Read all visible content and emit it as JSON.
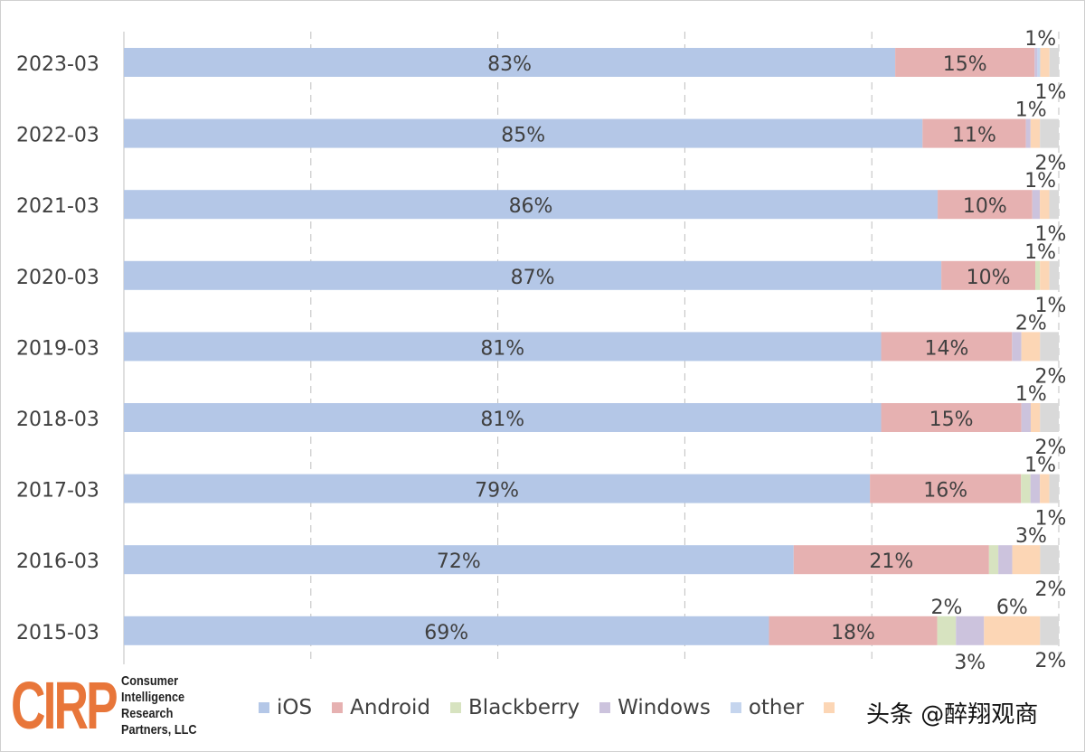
{
  "chart_data": {
    "type": "bar",
    "orientation": "horizontal",
    "stacked": true,
    "percent_stacked": true,
    "categories": [
      "2023-03",
      "2022-03",
      "2021-03",
      "2020-03",
      "2019-03",
      "2018-03",
      "2017-03",
      "2016-03",
      "2015-03"
    ],
    "xlim": [
      0,
      100
    ],
    "grid": "vertical-dashed",
    "legend_position": "bottom",
    "series": [
      {
        "name": "iOS",
        "color": "#b4c7e7",
        "values": [
          83,
          85,
          86,
          87,
          81,
          81,
          79,
          72,
          69
        ],
        "labels": [
          "83%",
          "85%",
          "86%",
          "87%",
          "81%",
          "81%",
          "79%",
          "72%",
          "69%"
        ]
      },
      {
        "name": "Android",
        "color": "#e6b1b1",
        "values": [
          15,
          11,
          10,
          10,
          14,
          15,
          16,
          21,
          18
        ],
        "labels": [
          "15%",
          "11%",
          "10%",
          "10%",
          "14%",
          "15%",
          "16%",
          "21%",
          "18%"
        ]
      },
      {
        "name": "Blackberry",
        "color": "#d7e3c0",
        "values": [
          0,
          0,
          0,
          0.5,
          0,
          0,
          1,
          1,
          2
        ],
        "labels": [
          "",
          "",
          "",
          "",
          "",
          "",
          "",
          "",
          "2%"
        ]
      },
      {
        "name": "Windows",
        "color": "#ccc3dd",
        "values": [
          0.3,
          0.5,
          0.8,
          0,
          1,
          1,
          1,
          1.5,
          3
        ],
        "labels": [
          "",
          "",
          "",
          "",
          "",
          "",
          "",
          "",
          "3%"
        ]
      },
      {
        "name": "other",
        "color": "#c5d5ee",
        "values": [
          0.3,
          0,
          0,
          0,
          0,
          0,
          0,
          0,
          0
        ],
        "labels": [
          "",
          "",
          "",
          "",
          "",
          "",
          "",
          "",
          ""
        ]
      },
      {
        "name": "",
        "color": "#fcd6b5",
        "values": [
          1,
          1,
          1,
          1,
          2,
          1,
          1,
          3,
          6
        ],
        "labels": [
          "1%",
          "1%",
          "1%",
          "1%",
          "2%",
          "1%",
          "1%",
          "3%",
          "6%"
        ]
      },
      {
        "name": "",
        "color": "#d9d9d9",
        "values": [
          1,
          2,
          1,
          1,
          2,
          2,
          1,
          2,
          2
        ],
        "labels": [
          "1%",
          "2%",
          "1%",
          "1%",
          "2%",
          "2%",
          "1%",
          "2%",
          "2%"
        ]
      }
    ]
  },
  "logo": {
    "mark": "CIRP",
    "lines": [
      "Consumer",
      "Intelligence",
      "Research",
      "Partners, LLC"
    ]
  },
  "watermark": "头条 @醉翔观商"
}
